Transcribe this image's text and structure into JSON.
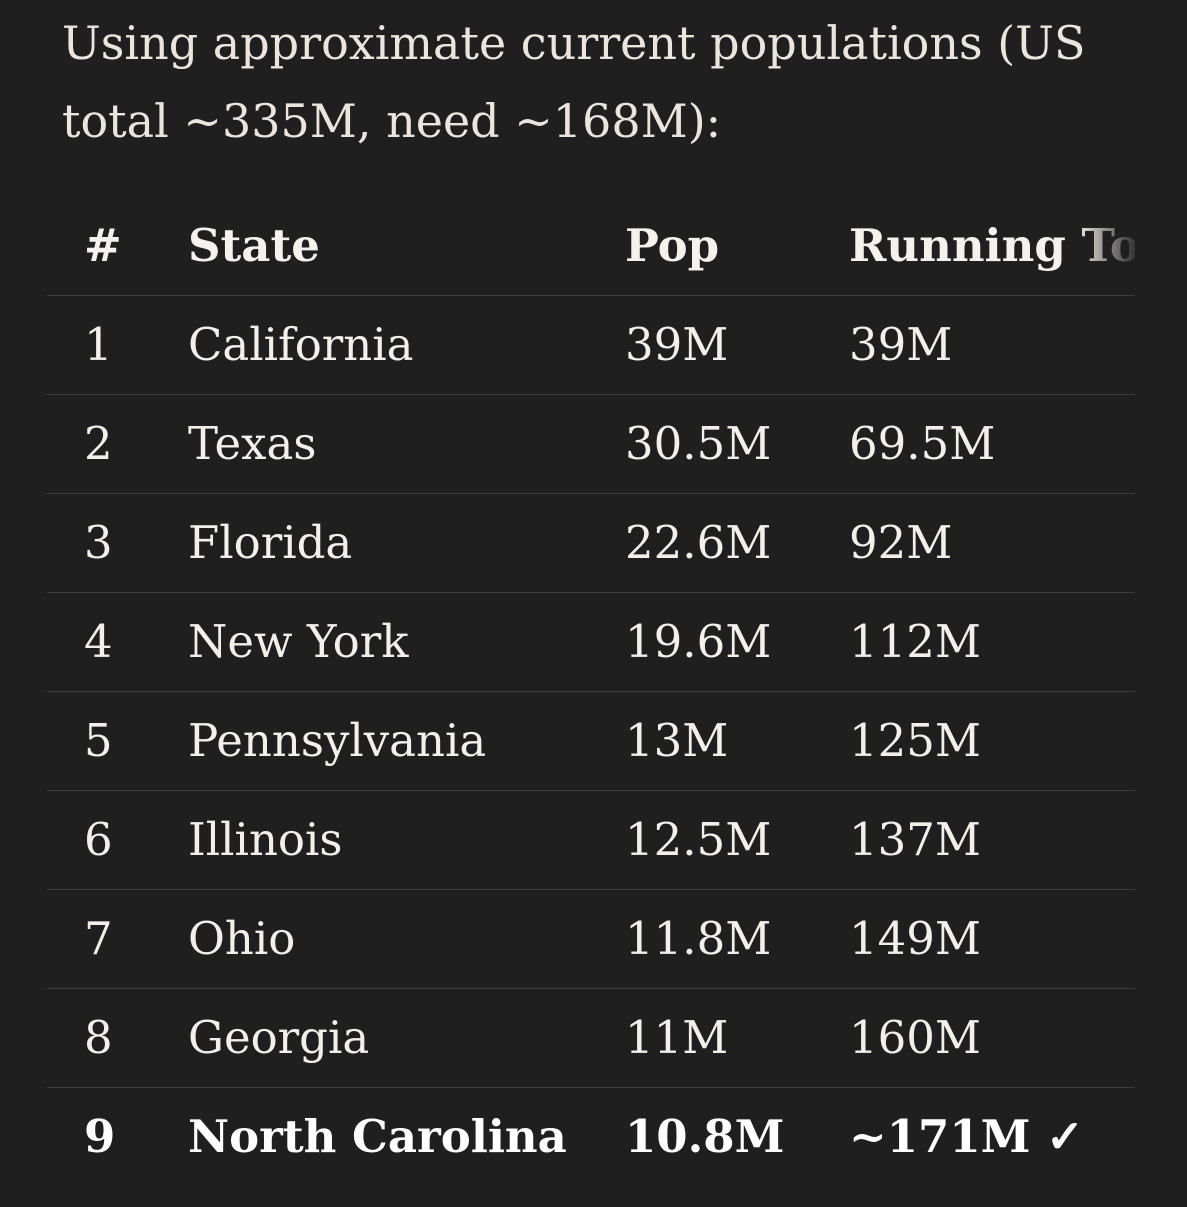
{
  "intro_text": "Using approximate current populations (US total ~335M, need ~168M):",
  "table": {
    "headers": [
      "#",
      "State",
      "Pop",
      "Running Total"
    ],
    "rows": [
      {
        "num": "1",
        "state": "California",
        "pop": "39M",
        "running": "39M"
      },
      {
        "num": "2",
        "state": "Texas",
        "pop": "30.5M",
        "running": "69.5M"
      },
      {
        "num": "3",
        "state": "Florida",
        "pop": "22.6M",
        "running": "92M"
      },
      {
        "num": "4",
        "state": "New York",
        "pop": "19.6M",
        "running": "112M"
      },
      {
        "num": "5",
        "state": "Pennsylvania",
        "pop": "13M",
        "running": "125M"
      },
      {
        "num": "6",
        "state": "Illinois",
        "pop": "12.5M",
        "running": "137M"
      },
      {
        "num": "7",
        "state": "Ohio",
        "pop": "11.8M",
        "running": "149M"
      },
      {
        "num": "8",
        "state": "Georgia",
        "pop": "11M",
        "running": "160M"
      },
      {
        "num": "9",
        "state": "North Carolina",
        "pop": "10.8M",
        "running": "~171M ✓",
        "bold": true
      }
    ]
  }
}
